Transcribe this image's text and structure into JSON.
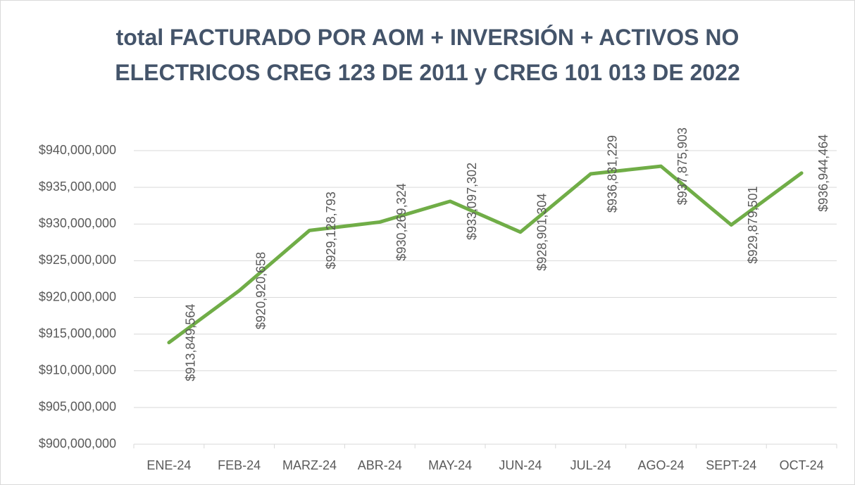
{
  "chart_data": {
    "type": "line",
    "title": "total FACTURADO POR AOM + INVERSIÓN + ACTIVOS NO ELECTRICOS CREG 123 DE 2011 y CREG 101 013 DE 2022",
    "categories": [
      "ENE-24",
      "FEB-24",
      "MARZ-24",
      "ABR-24",
      "MAY-24",
      "JUN-24",
      "JUL-24",
      "AGO-24",
      "SEPT-24",
      "OCT-24"
    ],
    "values": [
      913849564,
      920920658,
      929128793,
      930269324,
      933097302,
      928901304,
      936831229,
      937875903,
      929879501,
      936944464
    ],
    "value_labels": [
      "$913,849,564",
      "$920,920,658",
      "$929,128,793",
      "$930,269,324",
      "$933,097,302",
      "$928,901,304",
      "$936,831,229",
      "$937,875,903",
      "$929,879,501",
      "$936,944,464"
    ],
    "color": "#70ad47",
    "ylim": [
      900000000,
      940000000
    ],
    "yticks": [
      {
        "value": 900000000,
        "label": "$900,000,000"
      },
      {
        "value": 905000000,
        "label": "$905,000,000"
      },
      {
        "value": 910000000,
        "label": "$910,000,000"
      },
      {
        "value": 915000000,
        "label": "$915,000,000"
      },
      {
        "value": 920000000,
        "label": "$920,000,000"
      },
      {
        "value": 925000000,
        "label": "$925,000,000"
      },
      {
        "value": 930000000,
        "label": "$930,000,000"
      },
      {
        "value": 935000000,
        "label": "$935,000,000"
      },
      {
        "value": 940000000,
        "label": "$940,000,000"
      }
    ],
    "grid": true
  }
}
